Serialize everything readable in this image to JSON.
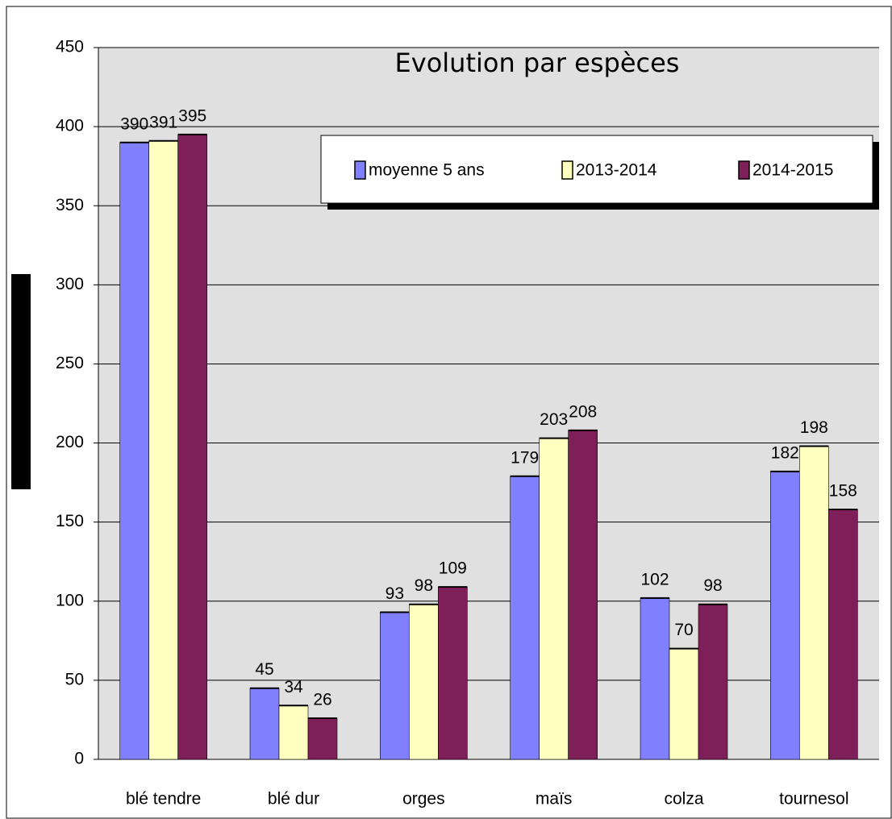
{
  "chart_data": {
    "type": "bar",
    "title": "Evolution par espèces",
    "categories": [
      "blé tendre",
      "blé dur",
      "orges",
      "maïs",
      "colza",
      "tournesol"
    ],
    "series": [
      {
        "name": "moyenne 5 ans",
        "color": "#8080ff",
        "values": [
          390,
          45,
          93,
          179,
          102,
          182
        ]
      },
      {
        "name": "2013-2014",
        "color": "#ffffc0",
        "values": [
          391,
          34,
          98,
          203,
          70,
          198
        ]
      },
      {
        "name": "2014-2015",
        "color": "#7f1f5a",
        "values": [
          395,
          26,
          109,
          208,
          98,
          158
        ]
      }
    ],
    "ylim": [
      0,
      450
    ],
    "yticks": [
      0,
      50,
      100,
      150,
      200,
      250,
      300,
      350,
      400,
      450
    ],
    "grid": true
  }
}
